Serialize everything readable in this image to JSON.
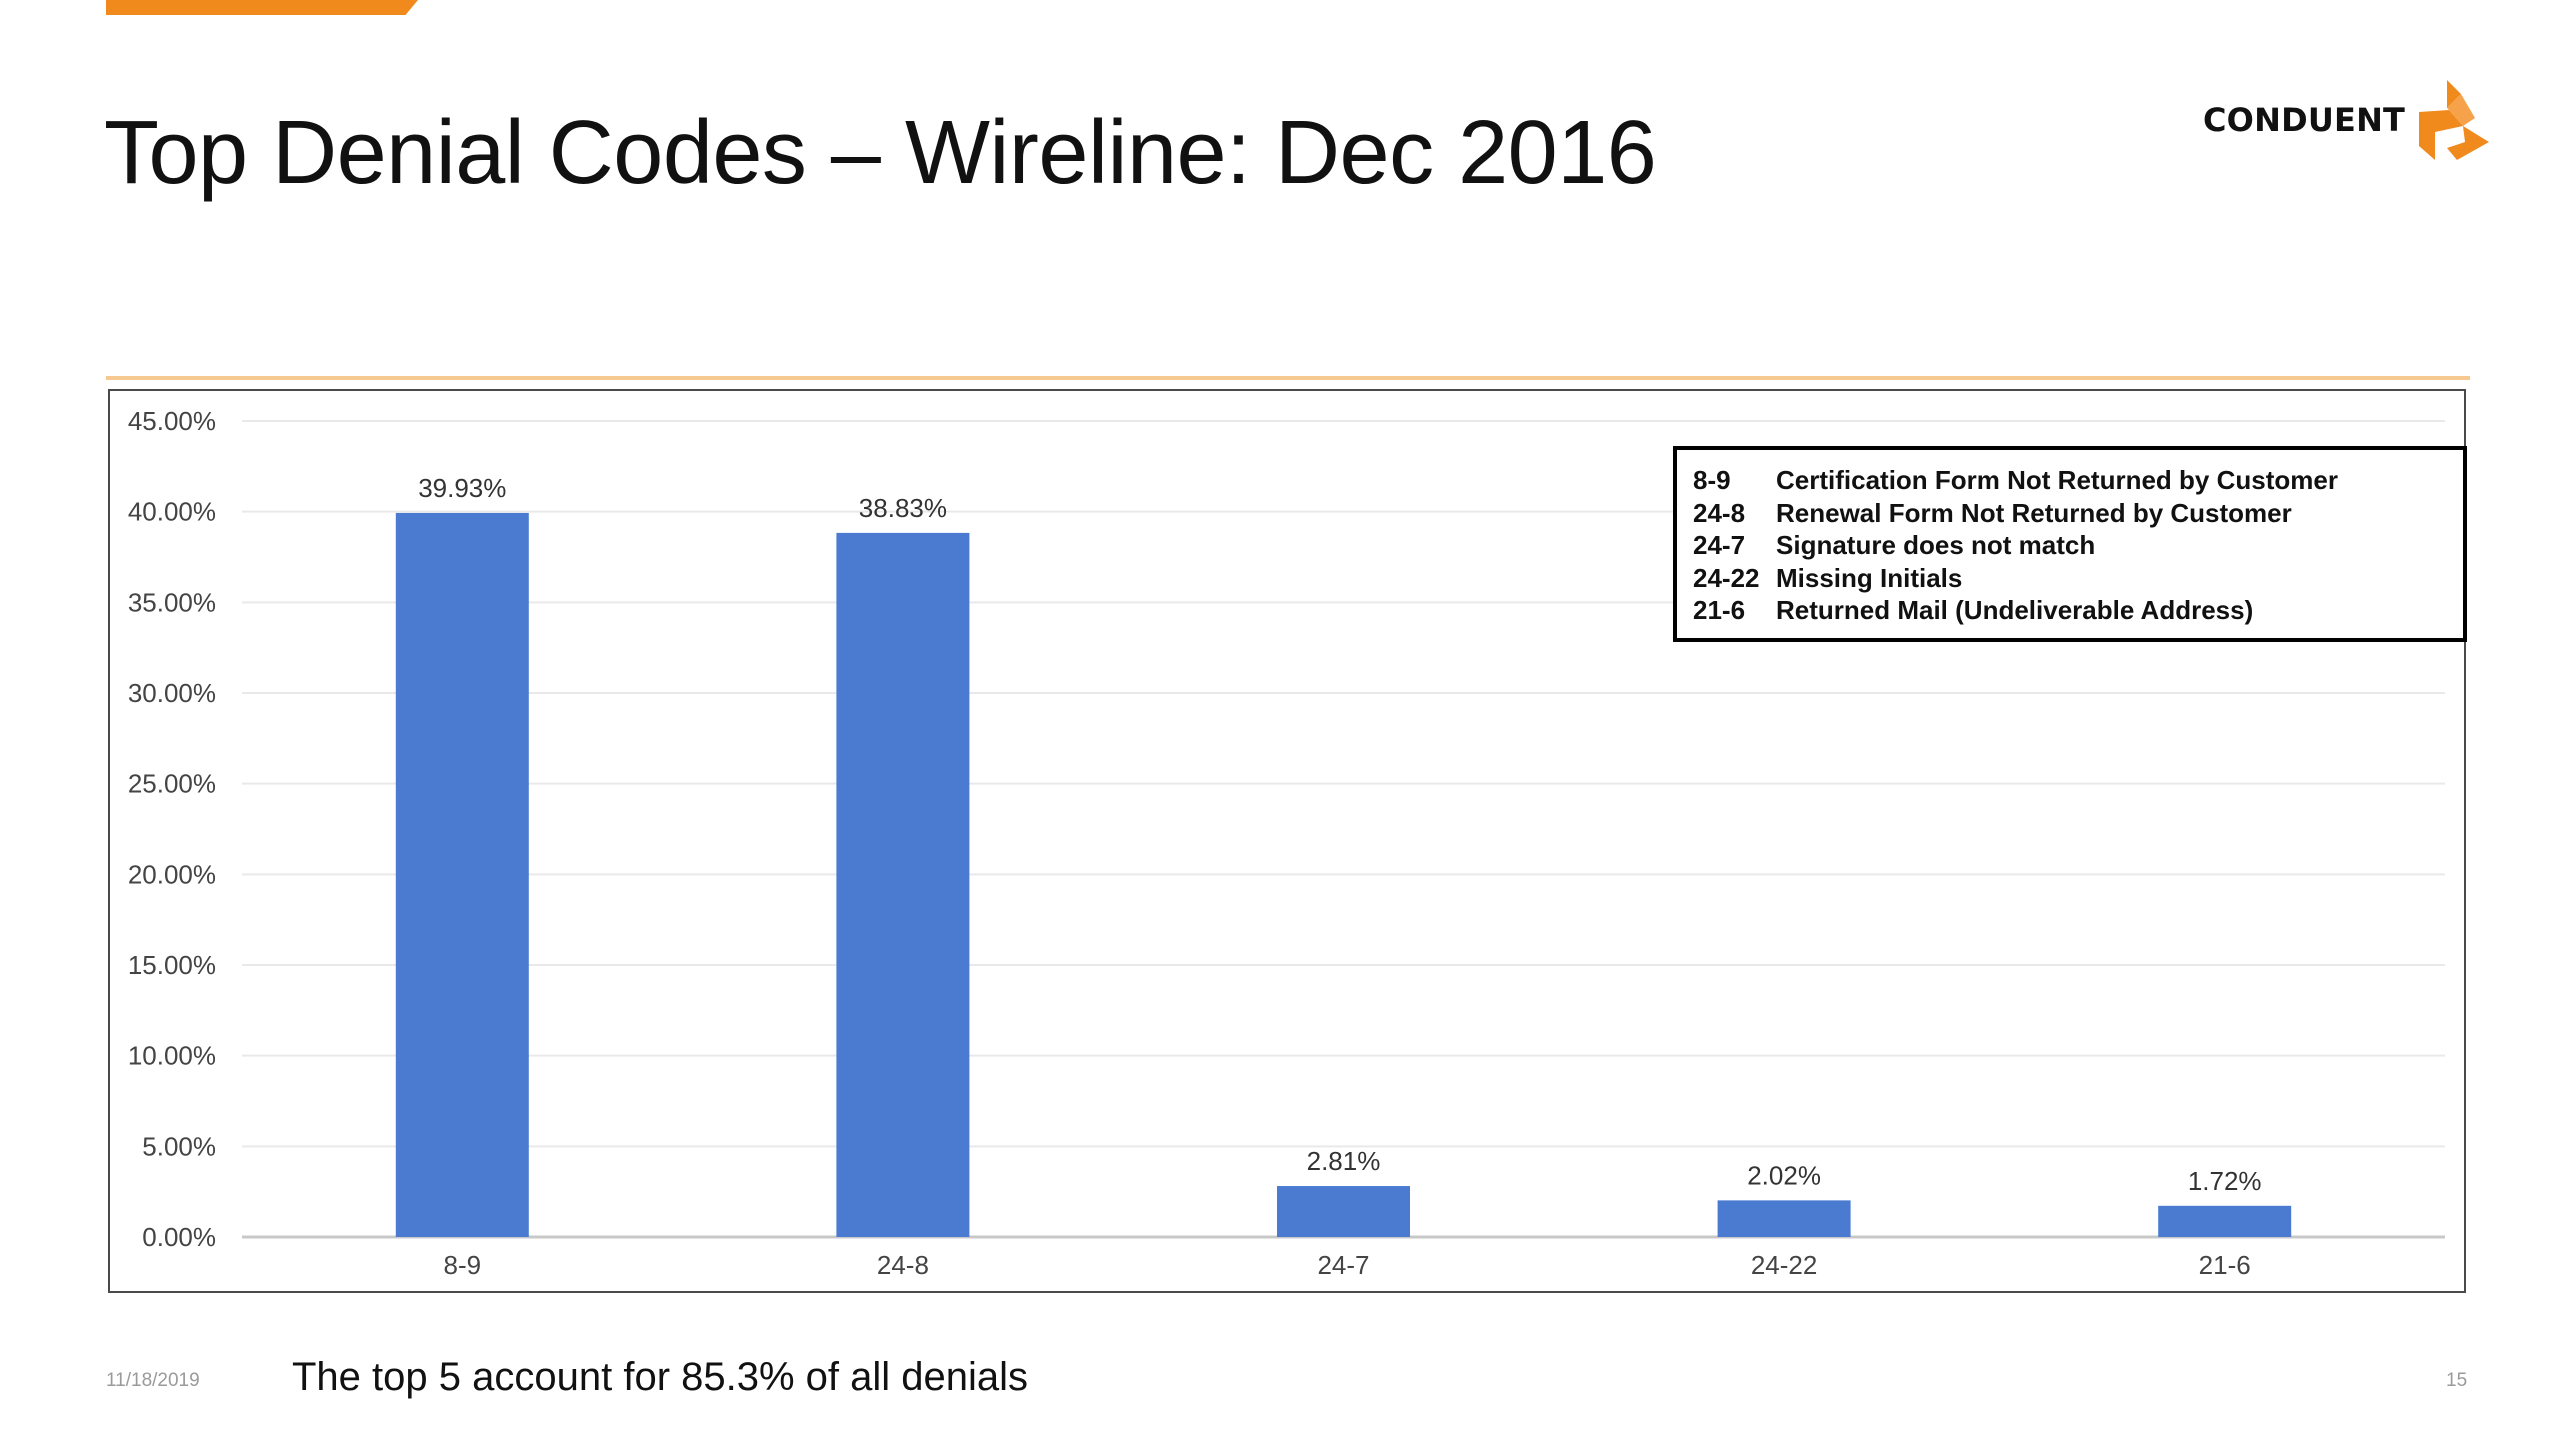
{
  "slide": {
    "title": "Top Denial Codes – Wireline: Dec 2016",
    "logo_text": "CONDUENT",
    "footer_date": "11/18/2019",
    "footer_note": "The top 5 account for 85.3% of all denials",
    "page_number": "15"
  },
  "colors": {
    "accent": "#f08a1c",
    "bar": "#4a7bd0",
    "gridline": "#e9e9e9"
  },
  "legend": [
    {
      "code": "8-9",
      "description": "Certification Form Not Returned by Customer"
    },
    {
      "code": "24-8",
      "description": "Renewal Form Not Returned by Customer"
    },
    {
      "code": "24-7",
      "description": "Signature does not match"
    },
    {
      "code": "24-22",
      "description": "Missing Initials"
    },
    {
      "code": "21-6",
      "description": "Returned Mail (Undeliverable Address)"
    }
  ],
  "chart_data": {
    "type": "bar",
    "categories": [
      "8-9",
      "24-8",
      "24-7",
      "24-22",
      "21-6"
    ],
    "values": [
      39.93,
      38.83,
      2.81,
      2.02,
      1.72
    ],
    "data_labels": [
      "39.93%",
      "38.83%",
      "2.81%",
      "2.02%",
      "1.72%"
    ],
    "y_ticks": [
      0,
      5,
      10,
      15,
      20,
      25,
      30,
      35,
      40,
      45
    ],
    "y_tick_labels": [
      "0.00%",
      "5.00%",
      "10.00%",
      "15.00%",
      "20.00%",
      "25.00%",
      "30.00%",
      "35.00%",
      "40.00%",
      "45.00%"
    ],
    "ylim": [
      0,
      45
    ],
    "title": "",
    "xlabel": "",
    "ylabel": "",
    "grid": true,
    "legend_position": "top-right"
  }
}
